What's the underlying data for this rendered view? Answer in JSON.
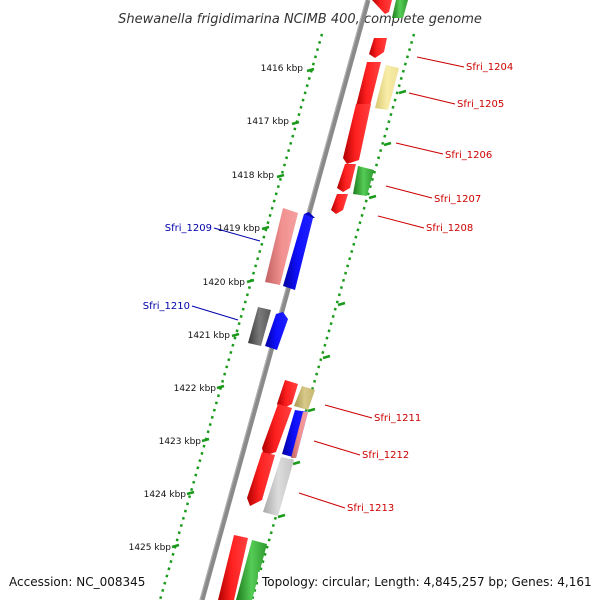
{
  "title": "Shewanella frigidimarina NCIMB 400, complete genome",
  "footer": {
    "accession": "Accession: NC_008345",
    "topology": "Topology: circular; Length: 4,845,257 bp; Genes: 4,161"
  },
  "ruler_labels": [
    "1416 kbp",
    "1417 kbp",
    "1418 kbp",
    "1419 kbp",
    "1420 kbp",
    "1421 kbp",
    "1422 kbp",
    "1423 kbp",
    "1424 kbp",
    "1425 kbp"
  ],
  "gene_labels": {
    "sfri_1204": "Sfri_1204",
    "sfri_1205": "Sfri_1205",
    "sfri_1206": "Sfri_1206",
    "sfri_1207": "Sfri_1207",
    "sfri_1208": "Sfri_1208",
    "sfri_1209": "Sfri_1209",
    "sfri_1210": "Sfri_1210",
    "sfri_1211": "Sfri_1211",
    "sfri_1212": "Sfri_1212",
    "sfri_1213": "Sfri_1213"
  },
  "colors": {
    "forward_label": "#cc0000",
    "reverse_label": "#0000aa",
    "backbone": "#808080",
    "ruler_dots": "#1a9a1a",
    "cds_red": "#ff0000",
    "cds_pink": "#f08080",
    "cds_blue": "#0000ff",
    "cds_green": "#33aa33",
    "cds_yellow": "#eee090",
    "cds_olive": "#c8b870",
    "cds_grey": "#606060",
    "cds_lightgrey": "#c0c0c0"
  }
}
